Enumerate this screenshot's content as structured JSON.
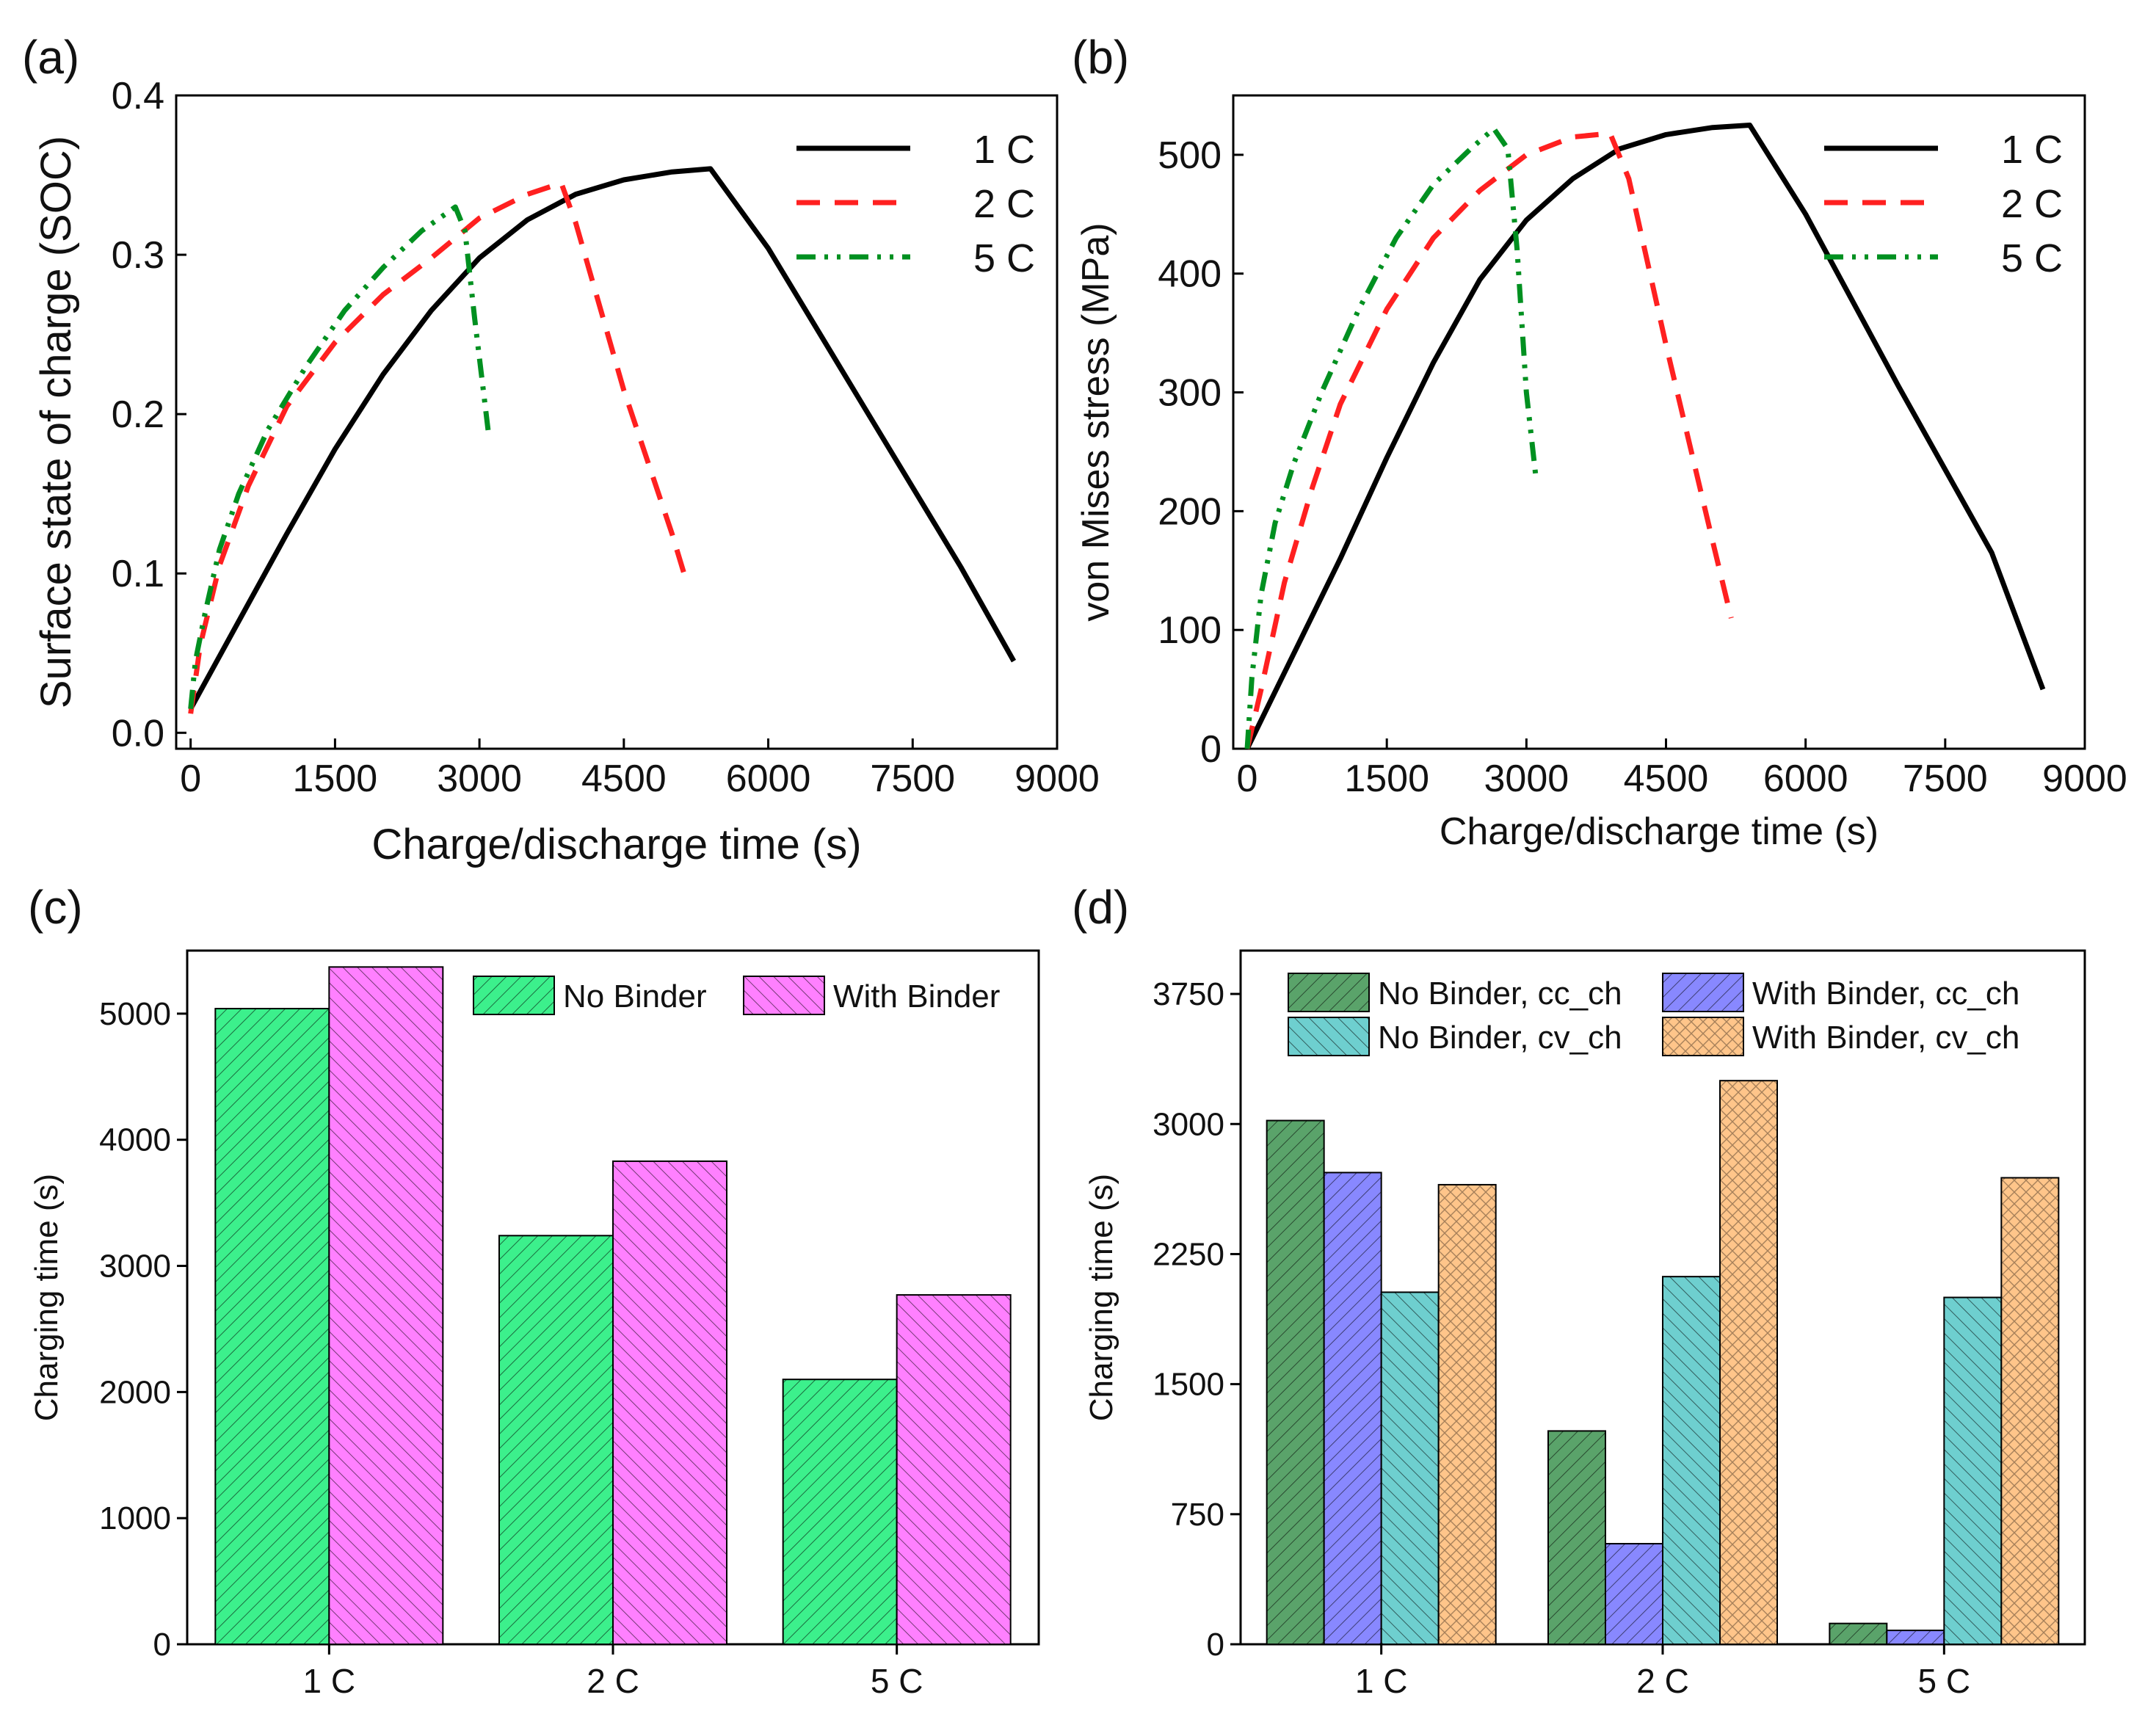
{
  "chart_data": [
    {
      "panel": "(a)",
      "type": "line",
      "xlabel": "Charge/discharge time (s)",
      "ylabel": "Surface state of charge (SOC)",
      "xlim": [
        -150,
        9000
      ],
      "ylim": [
        -0.01,
        0.4
      ],
      "xticks": [
        0,
        1500,
        3000,
        4500,
        6000,
        7500,
        9000
      ],
      "yticks": [
        0.0,
        0.1,
        0.2,
        0.3,
        0.4
      ],
      "legend_position": "top-right",
      "series": [
        {
          "name": "1 C",
          "color": "#000000",
          "dash": "solid",
          "points": [
            [
              0,
              0.015
            ],
            [
              500,
              0.07
            ],
            [
              1000,
              0.125
            ],
            [
              1500,
              0.178
            ],
            [
              2000,
              0.225
            ],
            [
              2500,
              0.265
            ],
            [
              3000,
              0.298
            ],
            [
              3500,
              0.322
            ],
            [
              4000,
              0.338
            ],
            [
              4500,
              0.347
            ],
            [
              5000,
              0.352
            ],
            [
              5400,
              0.354
            ],
            [
              6000,
              0.304
            ],
            [
              7000,
              0.204
            ],
            [
              8000,
              0.104
            ],
            [
              8550,
              0.045
            ]
          ]
        },
        {
          "name": "2 C",
          "color": "#ff2020",
          "dash": "dashed",
          "points": [
            [
              0,
              0.012
            ],
            [
              100,
              0.055
            ],
            [
              300,
              0.105
            ],
            [
              600,
              0.155
            ],
            [
              1000,
              0.205
            ],
            [
              1500,
              0.245
            ],
            [
              2000,
              0.275
            ],
            [
              2500,
              0.298
            ],
            [
              3000,
              0.323
            ],
            [
              3500,
              0.338
            ],
            [
              3850,
              0.345
            ],
            [
              4000,
              0.32
            ],
            [
              4500,
              0.215
            ],
            [
              5000,
              0.125
            ],
            [
              5150,
              0.095
            ]
          ]
        },
        {
          "name": "5 C",
          "color": "#009020",
          "dash": "dashdot",
          "points": [
            [
              0,
              0.015
            ],
            [
              50,
              0.045
            ],
            [
              150,
              0.075
            ],
            [
              300,
              0.115
            ],
            [
              500,
              0.15
            ],
            [
              800,
              0.19
            ],
            [
              1200,
              0.23
            ],
            [
              1600,
              0.265
            ],
            [
              2000,
              0.292
            ],
            [
              2400,
              0.315
            ],
            [
              2750,
              0.33
            ],
            [
              2850,
              0.315
            ],
            [
              2950,
              0.26
            ],
            [
              3050,
              0.21
            ],
            [
              3100,
              0.185
            ]
          ]
        }
      ]
    },
    {
      "panel": "(b)",
      "type": "line",
      "xlabel": "Charge/discharge time (s)",
      "ylabel": "von Mises stress (MPa)",
      "xlim": [
        -150,
        9000
      ],
      "ylim": [
        0,
        550
      ],
      "xticks": [
        0,
        1500,
        3000,
        4500,
        6000,
        7500,
        9000
      ],
      "yticks": [
        0,
        100,
        200,
        300,
        400,
        500
      ],
      "legend_position": "top-right",
      "series": [
        {
          "name": "1 C",
          "color": "#000000",
          "dash": "solid",
          "points": [
            [
              0,
              0
            ],
            [
              500,
              80
            ],
            [
              1000,
              160
            ],
            [
              1500,
              245
            ],
            [
              2000,
              325
            ],
            [
              2500,
              395
            ],
            [
              3000,
              445
            ],
            [
              3500,
              480
            ],
            [
              4000,
              505
            ],
            [
              4500,
              517
            ],
            [
              5000,
              523
            ],
            [
              5400,
              525
            ],
            [
              6000,
              450
            ],
            [
              7000,
              305
            ],
            [
              8000,
              165
            ],
            [
              8550,
              50
            ]
          ]
        },
        {
          "name": "2 C",
          "color": "#ff2020",
          "dash": "dashed",
          "points": [
            [
              0,
              0
            ],
            [
              150,
              50
            ],
            [
              400,
              140
            ],
            [
              700,
              220
            ],
            [
              1000,
              290
            ],
            [
              1500,
              370
            ],
            [
              2000,
              430
            ],
            [
              2500,
              470
            ],
            [
              3000,
              500
            ],
            [
              3500,
              515
            ],
            [
              3900,
              518
            ],
            [
              4100,
              480
            ],
            [
              4500,
              340
            ],
            [
              5000,
              175
            ],
            [
              5200,
              110
            ]
          ]
        },
        {
          "name": "5 C",
          "color": "#009020",
          "dash": "dashdot",
          "points": [
            [
              0,
              0
            ],
            [
              50,
              60
            ],
            [
              150,
              130
            ],
            [
              300,
              190
            ],
            [
              500,
              240
            ],
            [
              800,
              300
            ],
            [
              1200,
              370
            ],
            [
              1600,
              430
            ],
            [
              2000,
              475
            ],
            [
              2400,
              505
            ],
            [
              2650,
              522
            ],
            [
              2800,
              505
            ],
            [
              2900,
              420
            ],
            [
              3000,
              300
            ],
            [
              3100,
              230
            ]
          ]
        }
      ]
    },
    {
      "panel": "(c)",
      "type": "bar",
      "xlabel": "",
      "ylabel": "Charging time (s)",
      "ylim": [
        0,
        5500
      ],
      "yticks": [
        0,
        1000,
        2000,
        3000,
        4000,
        5000
      ],
      "categories": [
        "1 C",
        "2 C",
        "5 C"
      ],
      "legend_position": "top-right",
      "series": [
        {
          "name": "No Binder",
          "color": "#3cf08c",
          "values": [
            5040,
            3240,
            2100
          ]
        },
        {
          "name": "With Binder",
          "color": "#ff80ff",
          "values": [
            5370,
            3830,
            2770
          ]
        }
      ]
    },
    {
      "panel": "(d)",
      "type": "bar",
      "xlabel": "",
      "ylabel": "Charging time (s)",
      "ylim": [
        0,
        4000
      ],
      "yticks": [
        0,
        750,
        1500,
        2250,
        3000,
        3750
      ],
      "categories": [
        "1 C",
        "2 C",
        "5 C"
      ],
      "legend_position": "top",
      "series": [
        {
          "name": "No Binder, cc_ch",
          "color": "#5aa36a",
          "values": [
            3020,
            1230,
            120
          ]
        },
        {
          "name": "With Binder, cc_ch",
          "color": "#8888ff",
          "values": [
            2720,
            580,
            80
          ]
        },
        {
          "name": "No Binder, cv_ch",
          "color": "#6ecfcf",
          "values": [
            2030,
            2120,
            2000
          ]
        },
        {
          "name": "With Binder, cv_ch",
          "color": "#ffc58a",
          "values": [
            2650,
            3250,
            2690
          ]
        }
      ]
    }
  ]
}
